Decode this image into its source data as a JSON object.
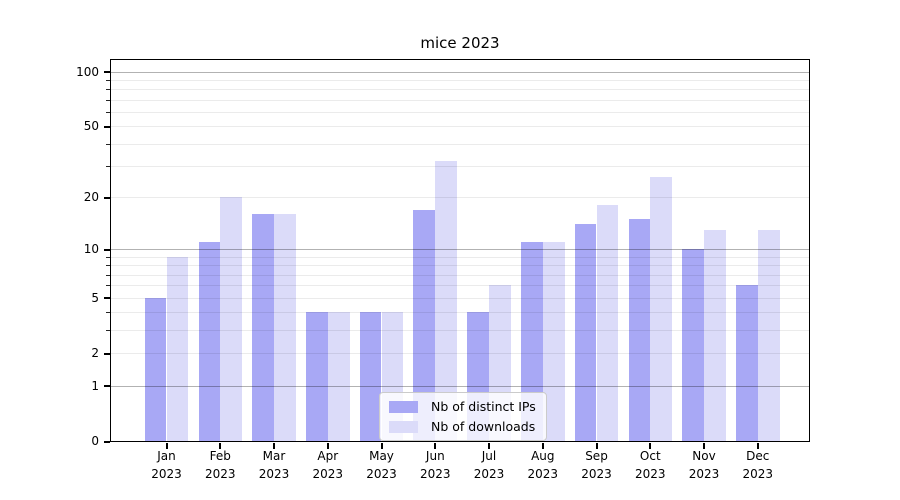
{
  "chart_data": {
    "type": "bar",
    "title": "mice 2023",
    "categories": [
      "Jan",
      "Feb",
      "Mar",
      "Apr",
      "May",
      "Jun",
      "Jul",
      "Aug",
      "Sep",
      "Oct",
      "Nov",
      "Dec"
    ],
    "category_year": "2023",
    "series": [
      {
        "name": "Nb of distinct IPs",
        "color": "#a8a8f5",
        "values": [
          5,
          11,
          16,
          4,
          4,
          17,
          4,
          11,
          14,
          15,
          10,
          6
        ]
      },
      {
        "name": "Nb of downloads",
        "color": "#dbdbf9",
        "values": [
          9,
          20,
          16,
          4,
          4,
          32,
          6,
          11,
          18,
          26,
          13,
          13
        ]
      }
    ],
    "yscale": "log1p",
    "ylim": [
      0,
      116
    ],
    "yticks": [
      100,
      50,
      20,
      10,
      5,
      2,
      1,
      0
    ],
    "major_gridlines": [
      1,
      10,
      100
    ],
    "minor_gridlines": [
      2,
      3,
      4,
      5,
      6,
      7,
      8,
      9,
      20,
      30,
      40,
      50,
      60,
      70,
      80,
      90
    ],
    "grid": true,
    "legend_position": "lower center",
    "xlabel": "",
    "ylabel": ""
  }
}
